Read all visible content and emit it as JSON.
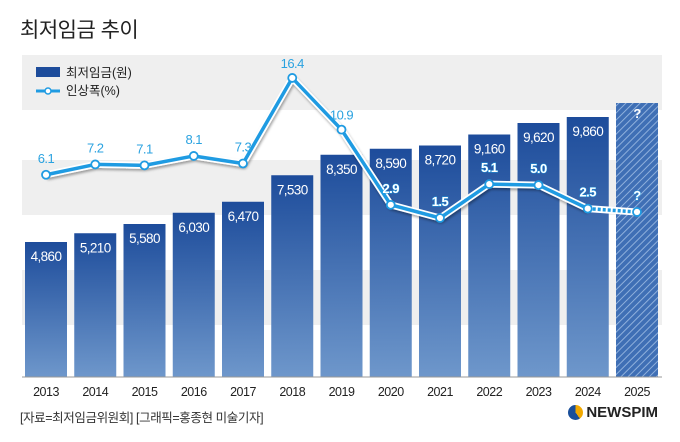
{
  "title": "최저임금 추이",
  "source": "[자료=최저임금위원회] [그래픽=홍종현 미술기자]",
  "logo_text": "NEWSPIM",
  "colors": {
    "bar_top": "#1d4c9b",
    "bar_bottom": "#6e97cb",
    "line": "#1f9be2",
    "pct_label": "#2aa2e0"
  },
  "chart_data": {
    "type": "bar",
    "title": "최저임금 추이",
    "categories": [
      "2013",
      "2014",
      "2015",
      "2016",
      "2017",
      "2018",
      "2019",
      "2020",
      "2021",
      "2022",
      "2023",
      "2024",
      "2025"
    ],
    "series": [
      {
        "name": "최저임금(원)",
        "type": "bar",
        "values": [
          4860,
          5210,
          5580,
          6030,
          6470,
          7530,
          8350,
          8590,
          8720,
          9160,
          9620,
          9860,
          null
        ],
        "labels": [
          "4,860",
          "5,210",
          "5,580",
          "6,030",
          "6,470",
          "7,530",
          "8,350",
          "8,590",
          "8,720",
          "9,160",
          "9,620",
          "9,860",
          "?"
        ]
      },
      {
        "name": "인상폭(%)",
        "type": "line",
        "values": [
          6.1,
          7.2,
          7.1,
          8.1,
          7.3,
          16.4,
          10.9,
          2.9,
          1.5,
          5.1,
          5.0,
          2.5,
          null
        ],
        "labels": [
          "6.1",
          "7.2",
          "7.1",
          "8.1",
          "7.3",
          "16.4",
          "10.9",
          "2.9",
          "1.5",
          "5.1",
          "5.0",
          "2.5",
          "?"
        ]
      }
    ],
    "legend": [
      "최저임금(원)",
      "인상폭(%)"
    ],
    "legend_position": "top-left",
    "grid": false
  }
}
